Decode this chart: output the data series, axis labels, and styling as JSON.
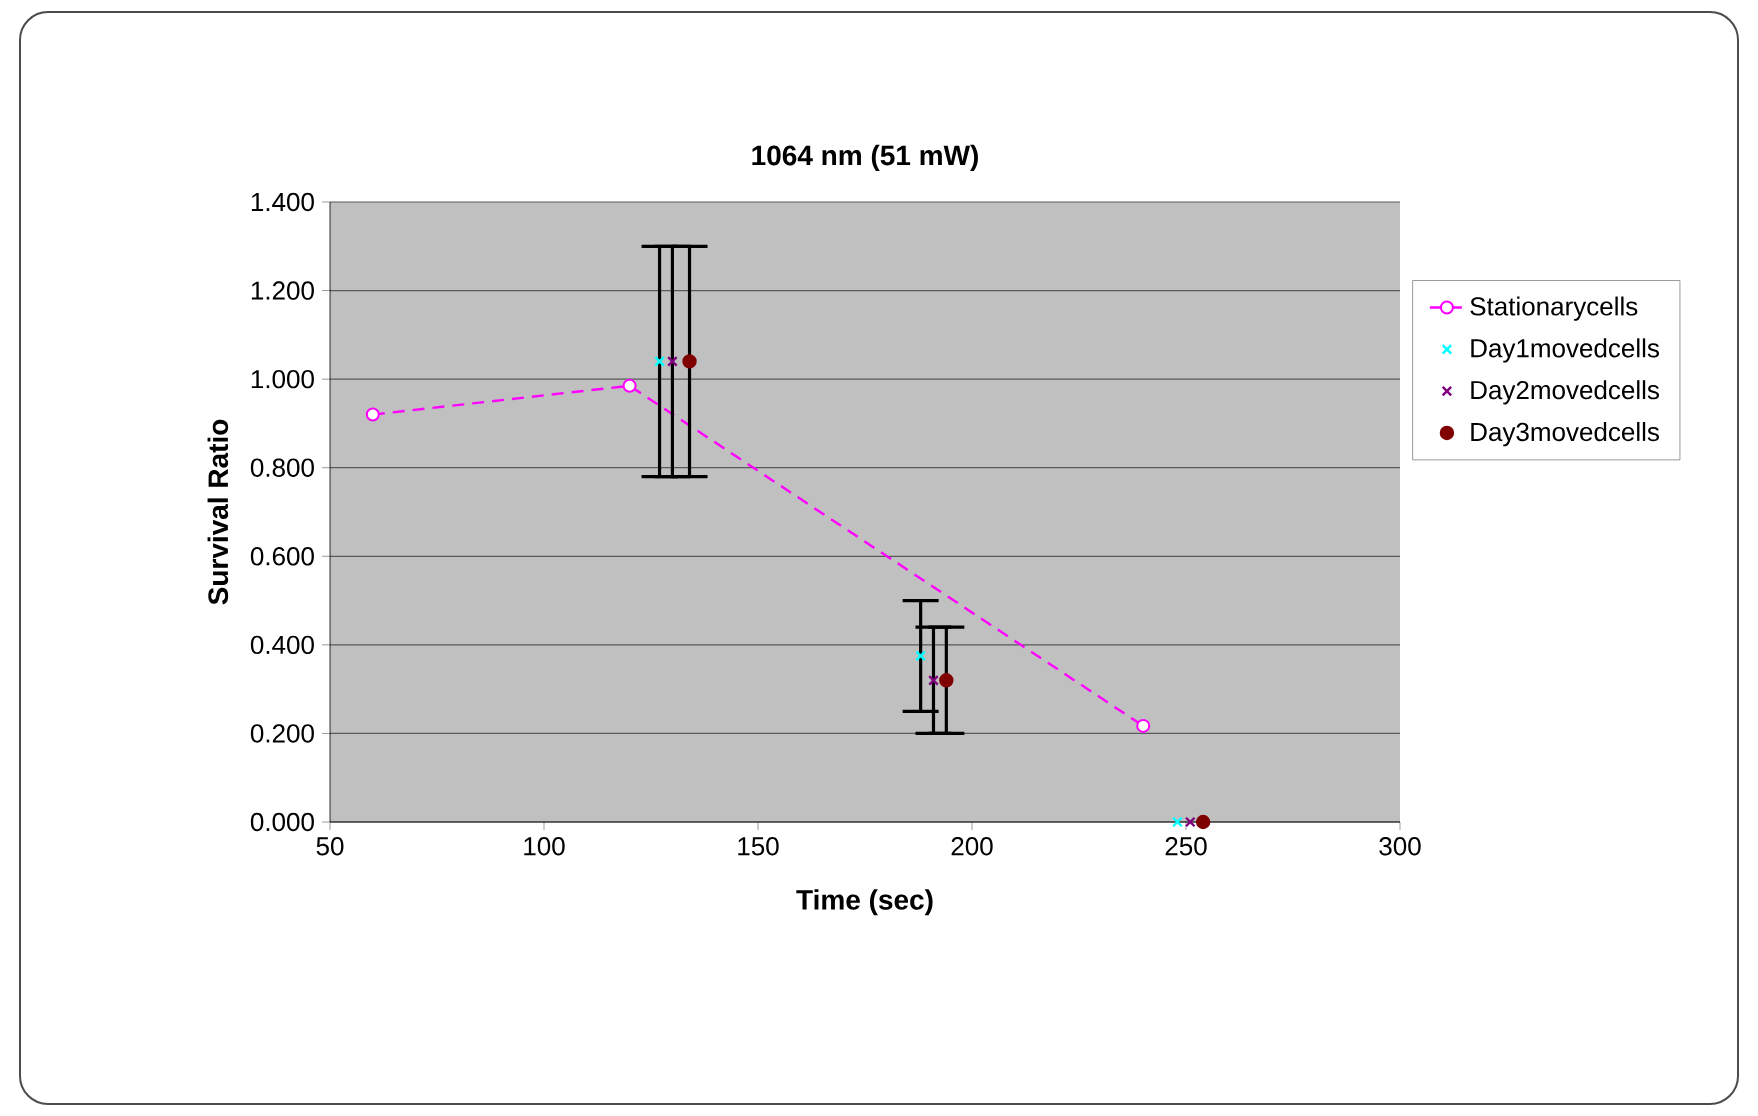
{
  "chart_data": {
    "type": "scatter",
    "title": "1064 nm (51 mW)",
    "xlabel": "Time (sec)",
    "ylabel": "Survival Ratio",
    "xlim": [
      50,
      300
    ],
    "xticks": [
      50,
      100,
      150,
      200,
      250,
      300
    ],
    "ylim": [
      0,
      1.4
    ],
    "yticks": [
      {
        "value": 0,
        "label": "0.000"
      },
      {
        "value": 0.2,
        "label": "0.200"
      },
      {
        "value": 0.4,
        "label": "0.400"
      },
      {
        "value": 0.6,
        "label": "0.600"
      },
      {
        "value": 0.8,
        "label": "0.800"
      },
      {
        "value": 1.0,
        "label": "1.000"
      },
      {
        "value": 1.2,
        "label": "1.200"
      },
      {
        "value": 1.4,
        "label": "1.400"
      }
    ],
    "grid": "y",
    "legend": "right",
    "series": [
      {
        "name": "Stationarycells",
        "type": "line",
        "color": "#ff00ff",
        "marker": "circle",
        "line_style": "dashed",
        "x": [
          60,
          120,
          240
        ],
        "values": [
          0.92,
          0.985,
          0.217
        ]
      },
      {
        "name": "Day1movedcells",
        "color": "#00ffff",
        "marker": "cross",
        "x": [
          127,
          188,
          248
        ],
        "values": [
          1.04,
          0.375,
          0
        ],
        "errors": [
          0.26,
          0.125,
          null
        ]
      },
      {
        "name": "Day2movedcells",
        "color": "#800080",
        "marker": "cross",
        "x": [
          130,
          191,
          251
        ],
        "values": [
          1.04,
          0.32,
          0
        ],
        "errors": [
          0.26,
          0.12,
          null
        ]
      },
      {
        "name": "Day3movedcells",
        "color": "#800000",
        "marker": "circle",
        "x": [
          134,
          194,
          254
        ],
        "values": [
          1.04,
          0.32,
          0
        ],
        "errors": [
          0.26,
          0.12,
          null
        ]
      }
    ]
  }
}
